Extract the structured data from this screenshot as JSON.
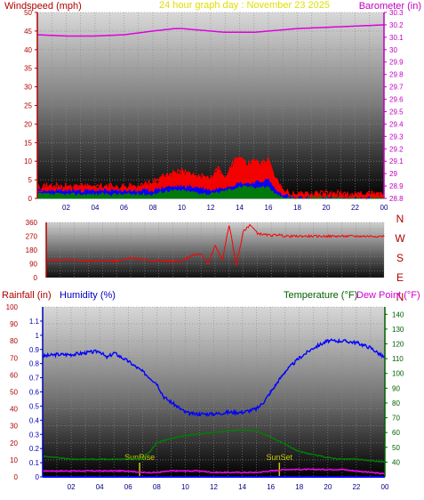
{
  "colors": {
    "wind": "#ff0000",
    "gust_fill": "#ff0000",
    "avg_fill": "#0000ff",
    "low_fill": "#008000",
    "barometer": "#e000e0",
    "title": "#e0e000",
    "direction": "#ff0000",
    "humidity": "#0000ff",
    "temperature": "#008000",
    "dewpoint": "#ff00ff",
    "rainfall": "#0000ff",
    "sun_marker": "#c8c800",
    "sun_label": "#c8c800"
  },
  "chart_data": [
    {
      "type": "line",
      "title": "24 hour graph day : November 23 2025",
      "ylabel_left": "Windspeed (mph)",
      "ylabel_right": "Barometer (in)",
      "x_ticks": [
        "02",
        "04",
        "06",
        "08",
        "10",
        "12",
        "14",
        "16",
        "18",
        "20",
        "22",
        "00"
      ],
      "ylim_left": [
        0,
        50
      ],
      "y_ticks_left": [
        0,
        5,
        10,
        15,
        20,
        25,
        30,
        35,
        40,
        45,
        50
      ],
      "ylim_right": [
        28.8,
        30.3
      ],
      "y_ticks_right": [
        "28.8",
        "28.9",
        "29",
        "29.1",
        "29.2",
        "29.3",
        "29.4",
        "29.5",
        "29.6",
        "29.7",
        "29.8",
        "29.9",
        "30",
        "30.1",
        "30.2",
        "30.3"
      ],
      "series": [
        {
          "name": "Barometer",
          "axis": "right",
          "x": [
            0,
            2,
            4,
            6,
            8,
            9.5,
            10,
            11,
            12,
            13,
            14,
            15,
            16,
            17,
            18,
            20,
            22,
            24
          ],
          "y": [
            30.12,
            30.11,
            30.11,
            30.12,
            30.15,
            30.17,
            30.17,
            30.16,
            30.15,
            30.14,
            30.14,
            30.14,
            30.15,
            30.16,
            30.17,
            30.18,
            30.19,
            30.2
          ]
        },
        {
          "name": "Wind gust",
          "axis": "left",
          "x": [
            0,
            1,
            2,
            3,
            4,
            5,
            6,
            7,
            8,
            9,
            10,
            11,
            12,
            12.5,
            13,
            13.5,
            14,
            14.5,
            15,
            15.5,
            16,
            16.5,
            17,
            18,
            19,
            20,
            21,
            22,
            23,
            24
          ],
          "y": [
            3,
            3,
            3,
            3,
            3,
            3,
            3,
            3,
            4,
            6,
            7,
            6,
            5,
            8,
            5,
            9,
            11,
            9,
            10,
            9,
            11,
            5,
            2,
            1,
            1,
            1,
            1,
            1,
            1,
            1
          ]
        },
        {
          "name": "Wind average",
          "axis": "left",
          "x": [
            0,
            1,
            2,
            3,
            4,
            5,
            6,
            7,
            8,
            9,
            10,
            11,
            12,
            13,
            14,
            15,
            16,
            16.5,
            17,
            18,
            20,
            22,
            24
          ],
          "y": [
            2,
            2,
            2,
            2,
            2,
            2,
            2,
            2,
            2,
            3,
            3,
            3,
            2,
            3,
            4,
            4,
            5,
            2,
            1,
            0,
            0,
            0,
            0
          ]
        },
        {
          "name": "Wind low",
          "axis": "left",
          "x": [
            0,
            2,
            4,
            6,
            8,
            9,
            10,
            12,
            14,
            15,
            16,
            16.5,
            17,
            18,
            24
          ],
          "y": [
            1,
            1,
            1,
            1,
            1,
            2,
            2,
            1,
            3,
            3,
            3,
            1,
            0,
            0,
            0
          ]
        }
      ]
    },
    {
      "type": "line",
      "title": "",
      "ylim": [
        0,
        360
      ],
      "y_ticks": [
        0,
        45,
        90,
        135,
        180,
        225,
        270,
        315,
        360
      ],
      "y_tick_labels": [
        "0",
        "",
        "90",
        "",
        "180",
        "",
        "270",
        "",
        "360"
      ],
      "compass_labels": [
        "N",
        "W",
        "S",
        "E",
        "N"
      ],
      "series": [
        {
          "name": "Wind direction",
          "x": [
            0,
            1,
            2,
            3,
            4,
            5,
            6,
            7,
            8,
            9,
            9.5,
            10,
            10.5,
            11,
            11.5,
            12,
            12.5,
            13,
            13.5,
            14,
            14.5,
            15,
            15.5,
            16,
            16.5,
            17,
            18,
            20,
            22,
            24
          ],
          "y": [
            110,
            115,
            112,
            108,
            110,
            108,
            130,
            115,
            110,
            105,
            105,
            125,
            150,
            150,
            90,
            210,
            110,
            345,
            80,
            300,
            345,
            290,
            280,
            275,
            280,
            270,
            270,
            270,
            270,
            270
          ]
        }
      ]
    },
    {
      "type": "line",
      "title": "",
      "ylabel_left_1": "Rainfall (in)",
      "ylabel_left_2": "Humidity (%)",
      "ylabel_right_1": "Temperature (°F)",
      "ylabel_right_2": "Dew Point (°F)",
      "ylim_rain": [
        0,
        1.2
      ],
      "y_ticks_rain": [
        "0",
        "0.1",
        "0.2",
        "0.3",
        "0.4",
        "0.5",
        "0.6",
        "0.7",
        "0.8",
        "0.9",
        "1",
        "1.1"
      ],
      "ylim_humidity": [
        0,
        100
      ],
      "y_ticks_humidity": [
        "0",
        "10",
        "20",
        "30",
        "40",
        "50",
        "60",
        "70",
        "80",
        "90",
        "100"
      ],
      "ylim_temp": [
        30,
        145
      ],
      "y_ticks_temp": [
        "40",
        "50",
        "60",
        "70",
        "80",
        "90",
        "100",
        "110",
        "120",
        "130",
        "140"
      ],
      "x_ticks": [
        "02",
        "04",
        "06",
        "08",
        "10",
        "12",
        "14",
        "16",
        "18",
        "20",
        "22",
        "00"
      ],
      "annotations": [
        {
          "label": "SunRise",
          "x": 6.8
        },
        {
          "label": "SunSet",
          "x": 16.6
        }
      ],
      "series": [
        {
          "name": "Humidity",
          "axis": "humidity",
          "x": [
            0,
            1,
            2,
            3,
            4,
            4.5,
            5,
            6,
            7,
            8,
            8.5,
            9,
            9.5,
            10,
            10.5,
            11,
            12,
            13,
            14,
            15,
            15.5,
            16,
            16.5,
            17,
            18,
            19,
            20,
            21,
            22,
            23,
            24
          ],
          "y": [
            71,
            72,
            72,
            73,
            74,
            70,
            73,
            68,
            62,
            55,
            47,
            44,
            41,
            38,
            37,
            37,
            37,
            38,
            38,
            40,
            44,
            50,
            56,
            62,
            70,
            76,
            80,
            80,
            79,
            76,
            70
          ]
        },
        {
          "name": "Temperature",
          "axis": "temp",
          "x": [
            0,
            1,
            2,
            3,
            4,
            5,
            6,
            7,
            7.5,
            8,
            9,
            10,
            11,
            12,
            13,
            14,
            15,
            16,
            17,
            18,
            19,
            20,
            21,
            22,
            23,
            24
          ],
          "y": [
            44,
            43,
            42,
            42,
            42,
            42,
            42,
            42,
            47,
            53,
            56,
            58,
            59,
            60,
            61,
            62,
            61,
            57,
            52,
            47,
            45,
            43,
            42,
            42,
            41,
            40
          ]
        },
        {
          "name": "Dew Point",
          "axis": "temp",
          "x": [
            0,
            1,
            2,
            3,
            4,
            5,
            6,
            7,
            8,
            9,
            10,
            11,
            12,
            13,
            14,
            15,
            16,
            17,
            18,
            19,
            20,
            21,
            22,
            23,
            24
          ],
          "y": [
            34,
            34,
            34,
            34,
            34,
            34,
            34,
            33,
            33,
            34,
            34,
            34,
            33,
            33,
            33,
            33,
            34,
            35,
            35,
            35,
            35,
            35,
            34,
            33,
            32
          ]
        },
        {
          "name": "Rainfall",
          "axis": "rain",
          "x": [
            0,
            24
          ],
          "y": [
            0,
            0
          ]
        }
      ]
    }
  ]
}
